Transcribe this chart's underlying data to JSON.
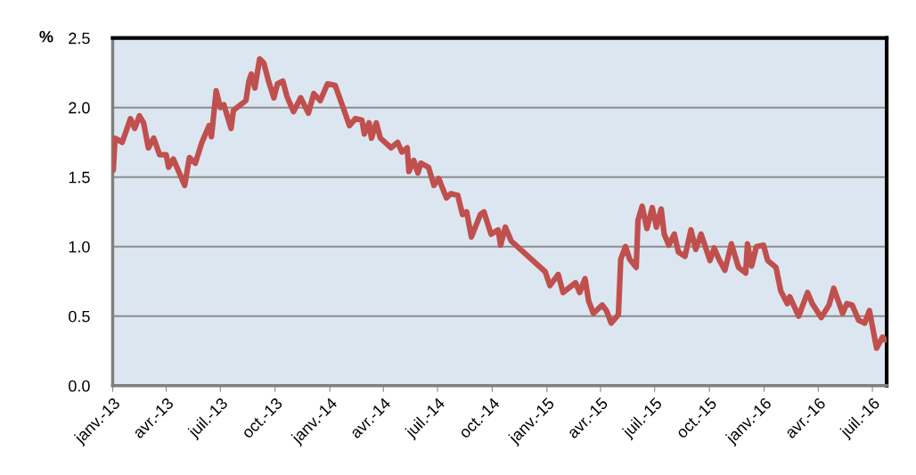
{
  "chart_data": {
    "type": "line",
    "ylabel": "%",
    "x": [
      "2013-01-01",
      "2013-01-02",
      "2013-01-05",
      "2013-01-17",
      "2013-01-31",
      "2013-02-07",
      "2013-02-15",
      "2013-02-22",
      "2013-03-02",
      "2013-03-11",
      "2013-03-21",
      "2013-04-01",
      "2013-04-05",
      "2013-04-13",
      "2013-05-02",
      "2013-05-10",
      "2013-05-20",
      "2013-05-31",
      "2013-06-12",
      "2013-06-16",
      "2013-06-24",
      "2013-07-01",
      "2013-07-07",
      "2013-07-19",
      "2013-07-23",
      "2013-08-13",
      "2013-08-18",
      "2013-08-22",
      "2013-08-28",
      "2013-09-05",
      "2013-09-12",
      "2013-09-20",
      "2013-09-29",
      "2013-10-05",
      "2013-10-14",
      "2013-10-21",
      "2013-11-01",
      "2013-11-13",
      "2013-11-26",
      "2013-12-05",
      "2013-12-16",
      "2013-12-28",
      "2014-01-10",
      "2014-01-25",
      "2014-02-03",
      "2014-02-13",
      "2014-02-24",
      "2014-02-28",
      "2014-03-08",
      "2014-03-12",
      "2014-03-20",
      "2014-03-27",
      "2014-04-14",
      "2014-04-25",
      "2014-05-02",
      "2014-05-11",
      "2014-05-14",
      "2014-05-22",
      "2014-05-29",
      "2014-06-03",
      "2014-06-16",
      "2014-06-25",
      "2014-07-03",
      "2014-07-16",
      "2014-07-23",
      "2014-08-04",
      "2014-08-12",
      "2014-08-19",
      "2014-08-27",
      "2014-09-11",
      "2014-09-17",
      "2014-09-29",
      "2014-10-11",
      "2014-10-15",
      "2014-10-23",
      "2014-11-02",
      "2014-12-29",
      "2015-01-06",
      "2015-01-20",
      "2015-01-28",
      "2015-02-18",
      "2015-02-25",
      "2015-03-06",
      "2015-03-12",
      "2015-03-20",
      "2015-04-04",
      "2015-04-11",
      "2015-04-19",
      "2015-05-01",
      "2015-05-05",
      "2015-05-13",
      "2015-05-20",
      "2015-05-31",
      "2015-06-03",
      "2015-06-10",
      "2015-06-18",
      "2015-06-27",
      "2015-07-04",
      "2015-07-12",
      "2015-07-17",
      "2015-07-25",
      "2015-08-03",
      "2015-08-10",
      "2015-08-21",
      "2015-08-31",
      "2015-09-08",
      "2015-09-17",
      "2015-10-02",
      "2015-10-09",
      "2015-10-17",
      "2015-10-27",
      "2015-11-07",
      "2015-11-19",
      "2015-12-01",
      "2015-12-04",
      "2015-12-11",
      "2015-12-19",
      "2015-12-31",
      "2016-01-07",
      "2016-01-21",
      "2016-01-29",
      "2016-02-09",
      "2016-02-13",
      "2016-02-28",
      "2016-03-07",
      "2016-03-14",
      "2016-03-22",
      "2016-04-06",
      "2016-04-19",
      "2016-04-27",
      "2016-05-12",
      "2016-05-19",
      "2016-05-28",
      "2016-06-08",
      "2016-06-18",
      "2016-06-26",
      "2016-07-08",
      "2016-07-18",
      "2016-07-22"
    ],
    "series": [
      {
        "color": "#c0504d",
        "values": [
          1.57,
          1.55,
          1.78,
          1.75,
          1.92,
          1.85,
          1.94,
          1.89,
          1.71,
          1.78,
          1.66,
          1.66,
          1.57,
          1.63,
          1.44,
          1.64,
          1.6,
          1.75,
          1.87,
          1.79,
          2.12,
          2.0,
          2.02,
          1.85,
          1.98,
          2.05,
          2.19,
          2.24,
          2.14,
          2.35,
          2.32,
          2.19,
          2.07,
          2.17,
          2.19,
          2.08,
          1.97,
          2.07,
          1.96,
          2.1,
          2.05,
          2.17,
          2.16,
          1.98,
          1.87,
          1.92,
          1.91,
          1.81,
          1.89,
          1.78,
          1.89,
          1.78,
          1.71,
          1.75,
          1.68,
          1.71,
          1.54,
          1.62,
          1.53,
          1.6,
          1.57,
          1.44,
          1.49,
          1.35,
          1.38,
          1.37,
          1.23,
          1.25,
          1.07,
          1.23,
          1.25,
          1.09,
          1.12,
          1.01,
          1.14,
          1.04,
          0.82,
          0.72,
          0.8,
          0.67,
          0.74,
          0.67,
          0.77,
          0.61,
          0.52,
          0.58,
          0.54,
          0.45,
          0.51,
          0.91,
          1.0,
          0.91,
          0.85,
          1.19,
          1.29,
          1.13,
          1.28,
          1.14,
          1.27,
          1.09,
          1.01,
          1.09,
          0.96,
          0.93,
          1.12,
          0.98,
          1.09,
          0.9,
          0.99,
          0.91,
          0.83,
          1.02,
          0.85,
          0.81,
          1.02,
          0.86,
          1.0,
          1.01,
          0.9,
          0.85,
          0.68,
          0.59,
          0.64,
          0.5,
          0.59,
          0.67,
          0.59,
          0.49,
          0.58,
          0.7,
          0.52,
          0.59,
          0.58,
          0.47,
          0.45,
          0.54,
          0.27,
          0.35,
          0.33
        ]
      }
    ],
    "xlim": [
      "2013-01-01",
      "2016-07-25"
    ],
    "xticks": [
      {
        "value": "2013-01-01",
        "label": "janv.-13"
      },
      {
        "value": "2013-04-01",
        "label": "avr.-13"
      },
      {
        "value": "2013-07-01",
        "label": "juil.-13"
      },
      {
        "value": "2013-10-01",
        "label": "oct.-13"
      },
      {
        "value": "2014-01-01",
        "label": "janv.-14"
      },
      {
        "value": "2014-04-01",
        "label": "avr.-14"
      },
      {
        "value": "2014-07-01",
        "label": "juil.-14"
      },
      {
        "value": "2014-10-01",
        "label": "oct.-14"
      },
      {
        "value": "2015-01-01",
        "label": "janv.-15"
      },
      {
        "value": "2015-04-01",
        "label": "avr.-15"
      },
      {
        "value": "2015-07-01",
        "label": "juil.-15"
      },
      {
        "value": "2015-10-01",
        "label": "oct.-15"
      },
      {
        "value": "2016-01-01",
        "label": "janv.-16"
      },
      {
        "value": "2016-04-01",
        "label": "avr.-16"
      },
      {
        "value": "2016-07-01",
        "label": "juil.-16"
      }
    ],
    "ylim": [
      0,
      2.5
    ],
    "yticks": [
      {
        "value": 0,
        "label": "0.0"
      },
      {
        "value": 0.5,
        "label": "0.5"
      },
      {
        "value": 1,
        "label": "1.0"
      },
      {
        "value": 1.5,
        "label": "1.5"
      },
      {
        "value": 2,
        "label": "2.0"
      },
      {
        "value": 2.5,
        "label": "2.5"
      }
    ],
    "grid": "y",
    "legend": false,
    "marker": "none",
    "line_style": "solid"
  }
}
